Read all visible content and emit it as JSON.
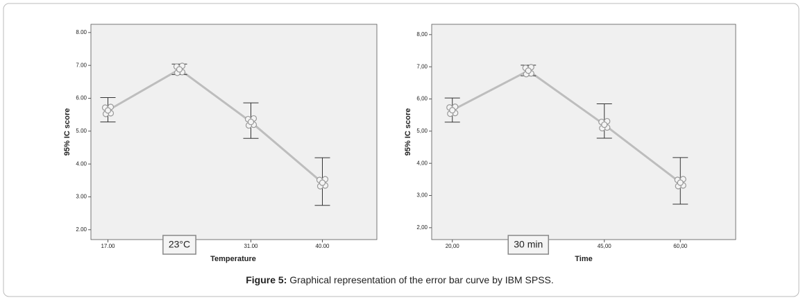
{
  "chart_data": [
    {
      "type": "errorline",
      "y_label": "95% IC score",
      "x_label": "Temperature",
      "categories": [
        "17.00",
        null,
        "31.00",
        "40.00"
      ],
      "values": [
        5.63,
        6.88,
        5.28,
        3.43
      ],
      "error_upper": [
        6.02,
        7.04,
        5.86,
        4.19
      ],
      "error_lower": [
        5.28,
        6.72,
        4.78,
        2.74
      ],
      "annotations": [
        {
          "text": "23°C",
          "category": 1
        }
      ],
      "ylim": [
        1.7,
        8.25
      ],
      "yticks": [
        {
          "value": 2,
          "label": "2.00"
        },
        {
          "value": 3,
          "label": "3.00"
        },
        {
          "value": 4,
          "label": "4.00"
        },
        {
          "value": 5,
          "label": "5.00"
        },
        {
          "value": 6,
          "label": "6.00"
        },
        {
          "value": 7,
          "label": "7.00"
        },
        {
          "value": 8,
          "label": "8.00"
        }
      ],
      "color": "#bdbdbd"
    },
    {
      "type": "errorline",
      "y_label": "95% IC score",
      "x_label": "Time",
      "categories": [
        "20,00",
        null,
        "45,00",
        "60,00"
      ],
      "values": [
        5.65,
        6.88,
        5.2,
        3.4
      ],
      "error_upper": [
        6.03,
        7.05,
        5.85,
        4.18
      ],
      "error_lower": [
        5.28,
        6.72,
        4.78,
        2.73
      ],
      "annotations": [
        {
          "text": "30 min",
          "category": 1
        }
      ],
      "ylim": [
        1.63,
        8.32
      ],
      "yticks": [
        {
          "value": 2,
          "label": "2,00"
        },
        {
          "value": 3,
          "label": "3,00"
        },
        {
          "value": 4,
          "label": "4,00"
        },
        {
          "value": 5,
          "label": "5,00"
        },
        {
          "value": 6,
          "label": "6,00"
        },
        {
          "value": 7,
          "label": "7,00"
        },
        {
          "value": 8,
          "label": "8,00"
        }
      ],
      "color": "#bdbdbd"
    }
  ],
  "caption": {
    "label": "Figure 5:",
    "text": "Graphical representation of the error bar curve by IBM SPSS."
  }
}
